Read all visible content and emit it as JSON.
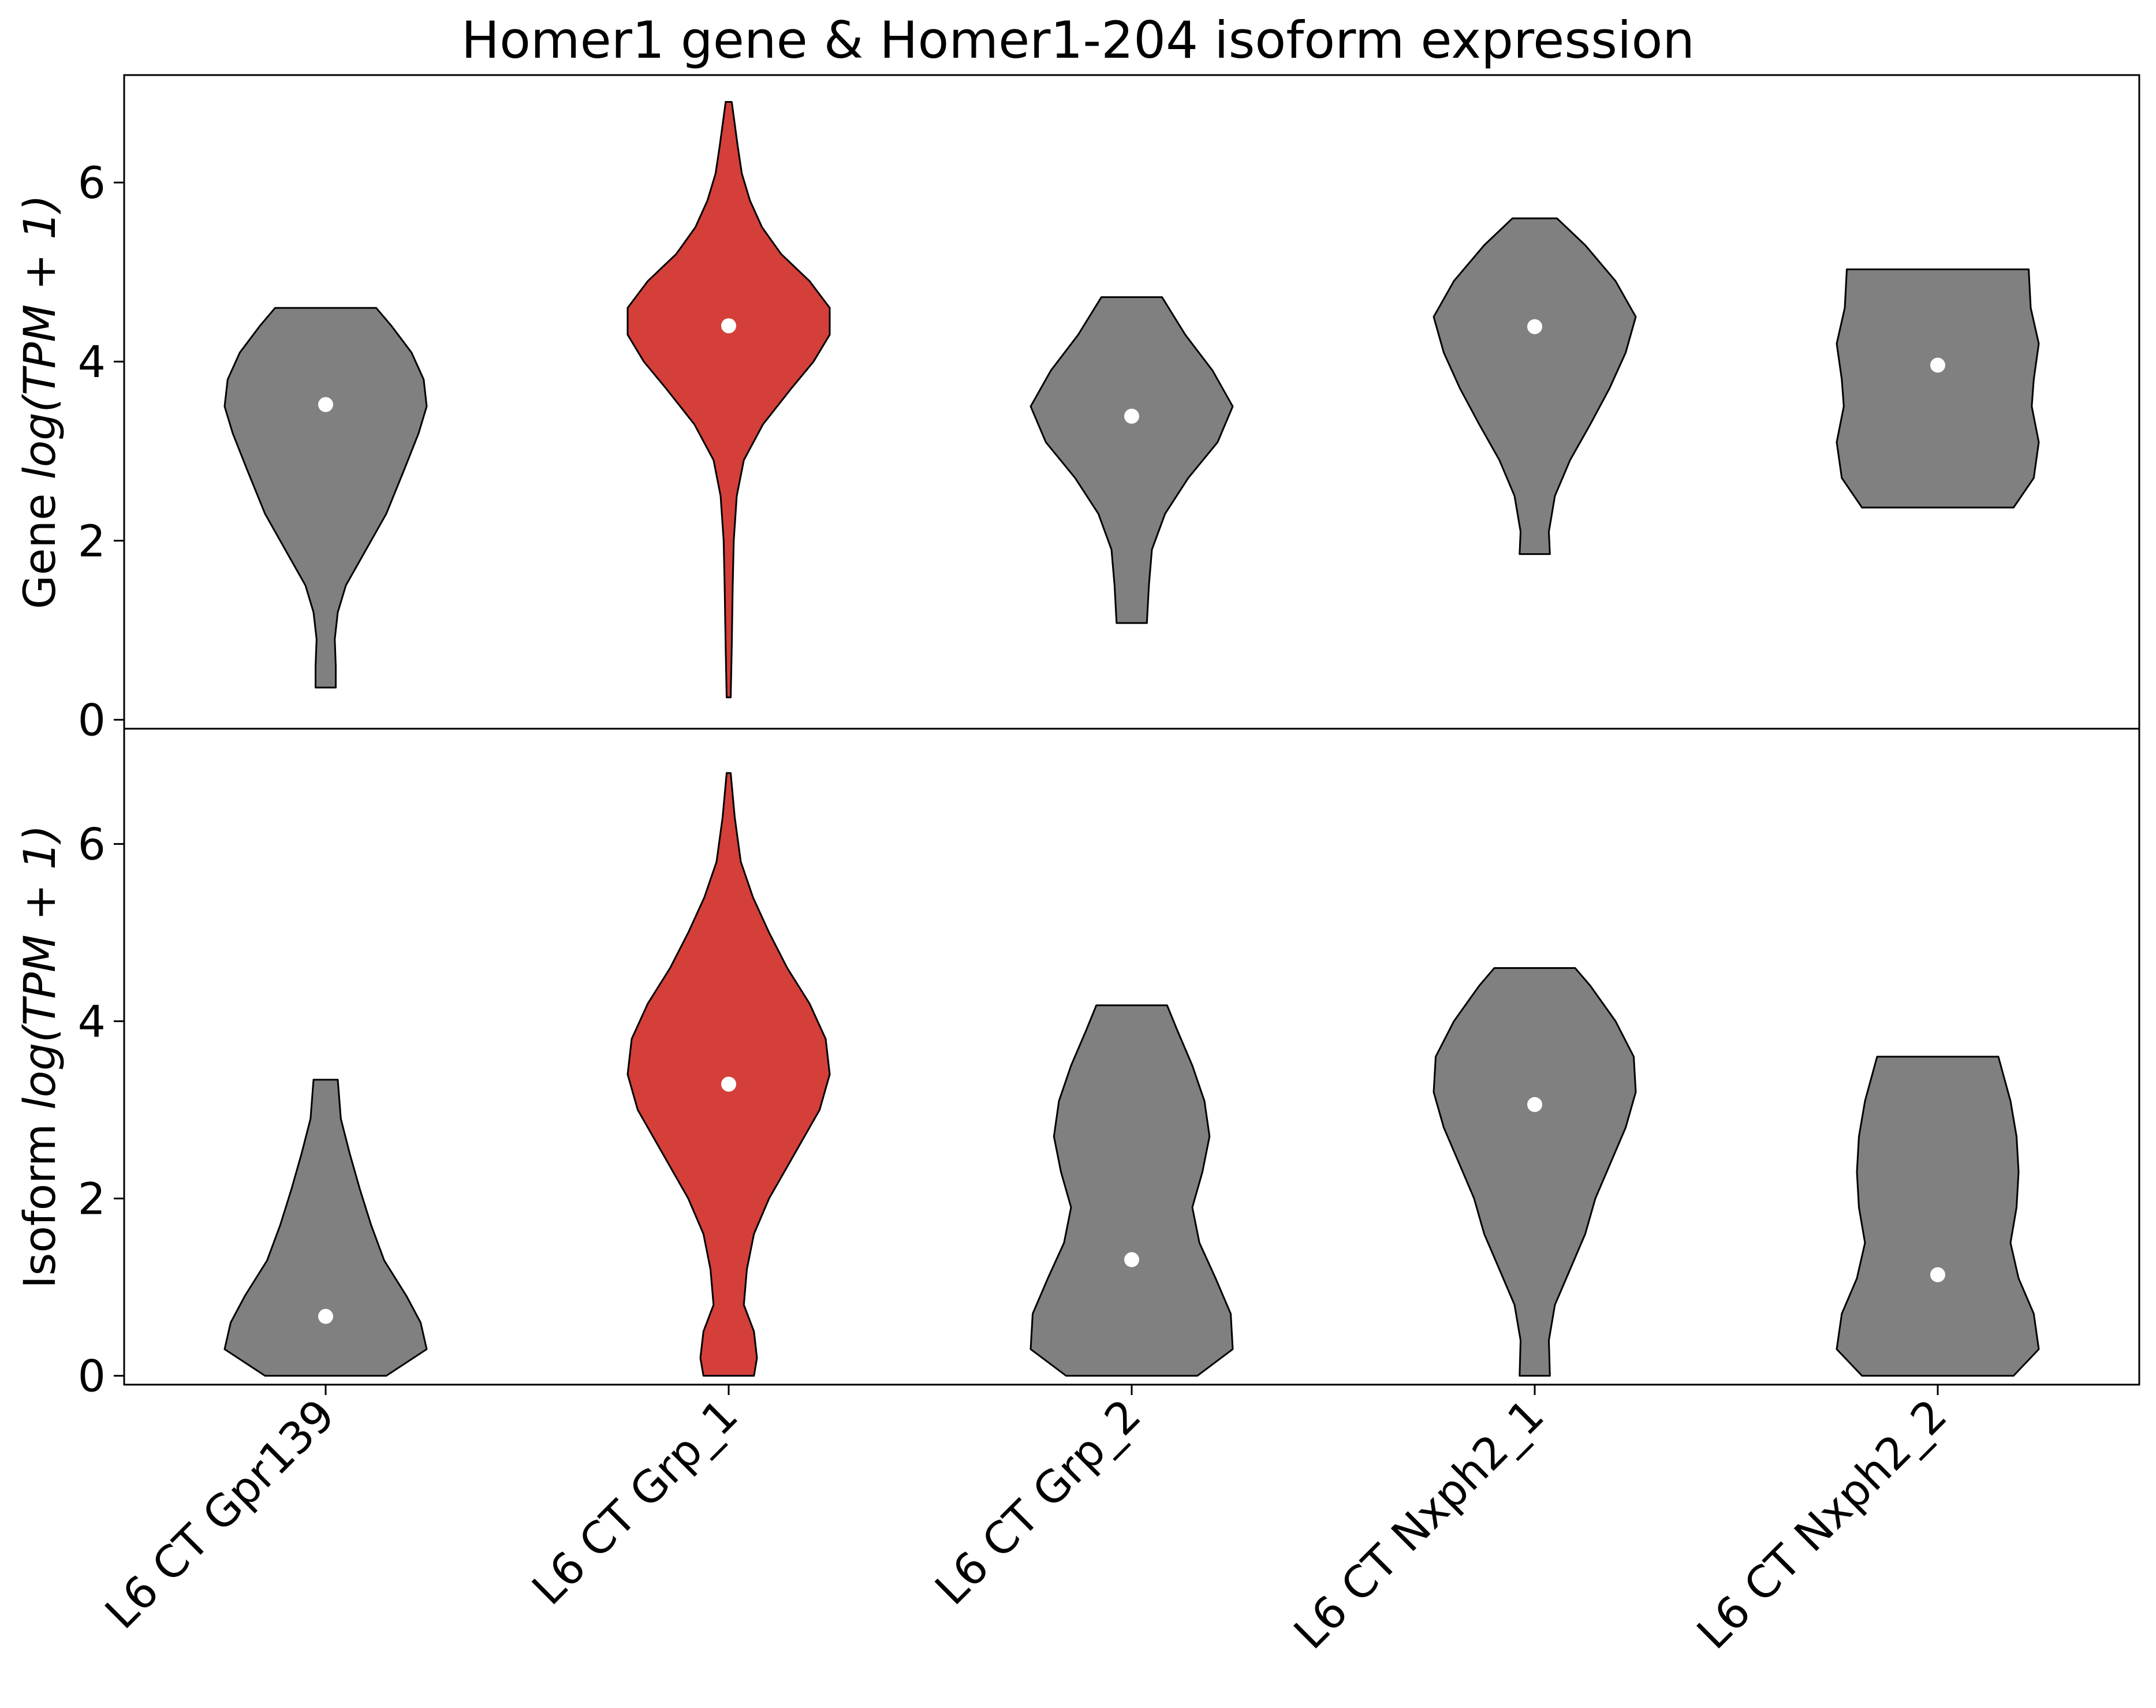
{
  "chart_data": {
    "type": "violin",
    "title": "Homer1 gene & Homer1-204 isoform expression",
    "categories": [
      "L6 CT Gpr139",
      "L6 CT Grp_1",
      "L6 CT Grp_2",
      "L6 CT Nxph2_1",
      "L6 CT Nxph2_2"
    ],
    "highlight_category": "L6 CT Grp_1",
    "colors": {
      "highlight": "#d43f3a",
      "default": "#808080",
      "median_marker": "#ffffff",
      "outline": "#000000"
    },
    "panels": [
      {
        "name": "gene",
        "ylabel_prefix": "Gene",
        "ylabel_math": "log(TPM + 1)",
        "yticks": [
          "0",
          "2",
          "4",
          "6"
        ],
        "ylim": [
          -0.1,
          7.2
        ],
        "violins": [
          {
            "median": 3.52,
            "profile": [
              [
                0.36,
                0.1
              ],
              [
                0.6,
                0.1
              ],
              [
                0.9,
                0.09
              ],
              [
                1.2,
                0.12
              ],
              [
                1.5,
                0.2
              ],
              [
                1.9,
                0.4
              ],
              [
                2.3,
                0.6
              ],
              [
                2.8,
                0.78
              ],
              [
                3.2,
                0.92
              ],
              [
                3.5,
                1.0
              ],
              [
                3.8,
                0.97
              ],
              [
                4.1,
                0.85
              ],
              [
                4.4,
                0.65
              ],
              [
                4.6,
                0.5
              ]
            ]
          },
          {
            "median": 4.4,
            "profile": [
              [
                0.25,
                0.02
              ],
              [
                0.8,
                0.03
              ],
              [
                1.5,
                0.04
              ],
              [
                2.0,
                0.05
              ],
              [
                2.5,
                0.08
              ],
              [
                2.9,
                0.15
              ],
              [
                3.3,
                0.34
              ],
              [
                3.7,
                0.62
              ],
              [
                4.0,
                0.84
              ],
              [
                4.3,
                1.0
              ],
              [
                4.6,
                1.0
              ],
              [
                4.9,
                0.8
              ],
              [
                5.2,
                0.52
              ],
              [
                5.5,
                0.33
              ],
              [
                5.8,
                0.21
              ],
              [
                6.1,
                0.13
              ],
              [
                6.4,
                0.09
              ],
              [
                6.9,
                0.03
              ]
            ]
          },
          {
            "median": 3.39,
            "profile": [
              [
                1.08,
                0.15
              ],
              [
                1.5,
                0.17
              ],
              [
                1.9,
                0.2
              ],
              [
                2.3,
                0.33
              ],
              [
                2.7,
                0.56
              ],
              [
                3.1,
                0.85
              ],
              [
                3.5,
                1.0
              ],
              [
                3.9,
                0.8
              ],
              [
                4.3,
                0.53
              ],
              [
                4.72,
                0.3
              ]
            ]
          },
          {
            "median": 4.39,
            "profile": [
              [
                1.85,
                0.15
              ],
              [
                2.1,
                0.14
              ],
              [
                2.5,
                0.2
              ],
              [
                2.9,
                0.35
              ],
              [
                3.3,
                0.55
              ],
              [
                3.7,
                0.74
              ],
              [
                4.1,
                0.9
              ],
              [
                4.5,
                1.0
              ],
              [
                4.9,
                0.8
              ],
              [
                5.3,
                0.5
              ],
              [
                5.6,
                0.22
              ]
            ]
          },
          {
            "median": 3.96,
            "profile": [
              [
                2.37,
                0.75
              ],
              [
                2.7,
                0.95
              ],
              [
                3.1,
                1.0
              ],
              [
                3.5,
                0.93
              ],
              [
                3.8,
                0.95
              ],
              [
                4.2,
                1.0
              ],
              [
                4.6,
                0.92
              ],
              [
                5.03,
                0.9
              ]
            ]
          }
        ]
      },
      {
        "name": "isoform",
        "ylabel_prefix": "Isoform",
        "ylabel_math": "log(TPM + 1)",
        "yticks": [
          "0",
          "2",
          "4",
          "6"
        ],
        "ylim": [
          -0.1,
          7.3
        ],
        "violins": [
          {
            "median": 0.67,
            "profile": [
              [
                0.0,
                0.6
              ],
              [
                0.3,
                1.0
              ],
              [
                0.6,
                0.94
              ],
              [
                0.9,
                0.8
              ],
              [
                1.3,
                0.58
              ],
              [
                1.7,
                0.45
              ],
              [
                2.1,
                0.34
              ],
              [
                2.5,
                0.24
              ],
              [
                2.9,
                0.15
              ],
              [
                3.34,
                0.12
              ]
            ]
          },
          {
            "median": 3.29,
            "profile": [
              [
                0.0,
                0.25
              ],
              [
                0.2,
                0.28
              ],
              [
                0.5,
                0.25
              ],
              [
                0.8,
                0.15
              ],
              [
                1.2,
                0.18
              ],
              [
                1.6,
                0.25
              ],
              [
                2.0,
                0.4
              ],
              [
                2.5,
                0.65
              ],
              [
                3.0,
                0.9
              ],
              [
                3.4,
                1.0
              ],
              [
                3.8,
                0.96
              ],
              [
                4.2,
                0.8
              ],
              [
                4.6,
                0.58
              ],
              [
                5.0,
                0.4
              ],
              [
                5.4,
                0.24
              ],
              [
                5.8,
                0.12
              ],
              [
                6.3,
                0.06
              ],
              [
                6.8,
                0.02
              ]
            ]
          },
          {
            "median": 1.31,
            "profile": [
              [
                0.0,
                0.65
              ],
              [
                0.3,
                1.0
              ],
              [
                0.7,
                0.98
              ],
              [
                1.1,
                0.83
              ],
              [
                1.5,
                0.67
              ],
              [
                1.9,
                0.6
              ],
              [
                2.3,
                0.7
              ],
              [
                2.7,
                0.77
              ],
              [
                3.1,
                0.72
              ],
              [
                3.5,
                0.6
              ],
              [
                3.9,
                0.45
              ],
              [
                4.18,
                0.35
              ]
            ]
          },
          {
            "median": 3.06,
            "profile": [
              [
                0.0,
                0.15
              ],
              [
                0.4,
                0.14
              ],
              [
                0.8,
                0.2
              ],
              [
                1.2,
                0.35
              ],
              [
                1.6,
                0.5
              ],
              [
                2.0,
                0.6
              ],
              [
                2.4,
                0.75
              ],
              [
                2.8,
                0.9
              ],
              [
                3.2,
                1.0
              ],
              [
                3.6,
                0.98
              ],
              [
                4.0,
                0.8
              ],
              [
                4.4,
                0.55
              ],
              [
                4.6,
                0.4
              ]
            ]
          },
          {
            "median": 1.14,
            "profile": [
              [
                0.0,
                0.75
              ],
              [
                0.3,
                1.0
              ],
              [
                0.7,
                0.95
              ],
              [
                1.1,
                0.8
              ],
              [
                1.5,
                0.72
              ],
              [
                1.9,
                0.78
              ],
              [
                2.3,
                0.8
              ],
              [
                2.7,
                0.78
              ],
              [
                3.1,
                0.72
              ],
              [
                3.6,
                0.6
              ]
            ]
          }
        ]
      }
    ]
  }
}
